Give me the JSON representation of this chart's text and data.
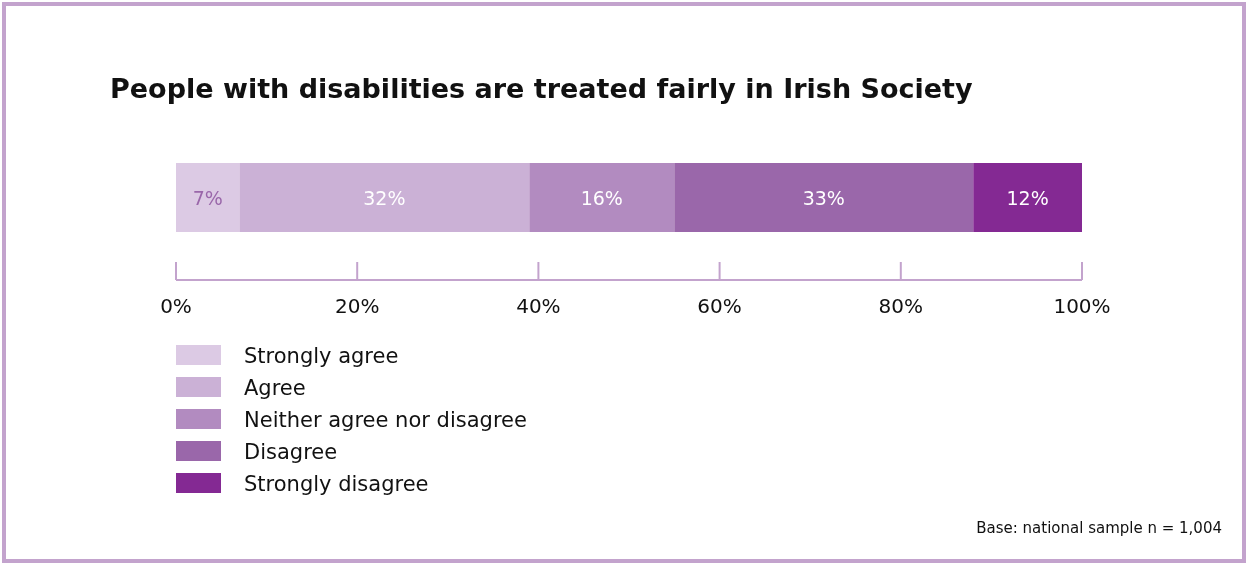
{
  "chart_data": {
    "type": "bar",
    "title": "People with disabilities are treated fairly in Irish Society",
    "orientation": "horizontal",
    "stacked": true,
    "categories": [
      null
    ],
    "series": [
      {
        "name": "Strongly agree",
        "color": "#dccae4",
        "values": [
          7
        ],
        "value_labels": [
          "7%"
        ]
      },
      {
        "name": "Agree",
        "color": "#cbb1d6",
        "values": [
          32
        ],
        "value_labels": [
          "32%"
        ]
      },
      {
        "name": "Neither agree nor disagree",
        "color": "#b28bc0",
        "values": [
          16
        ],
        "value_labels": [
          "16%"
        ]
      },
      {
        "name": "Disagree",
        "color": "#9a67aa",
        "values": [
          33
        ],
        "value_labels": [
          "33%"
        ]
      },
      {
        "name": "Strongly disagree",
        "color": "#842993",
        "values": [
          12
        ],
        "value_labels": [
          "12%"
        ]
      }
    ],
    "xlim": [
      0,
      100
    ],
    "xticks": [
      {
        "value": 0,
        "label": "0%"
      },
      {
        "value": 20,
        "label": "20%"
      },
      {
        "value": 40,
        "label": "40%"
      },
      {
        "value": 60,
        "label": "60%"
      },
      {
        "value": 80,
        "label": "80%"
      },
      {
        "value": 100,
        "label": "100%"
      }
    ],
    "legend": "bottom left",
    "grid": false,
    "annotations": [
      "Base: national sample n = 1,004"
    ]
  }
}
